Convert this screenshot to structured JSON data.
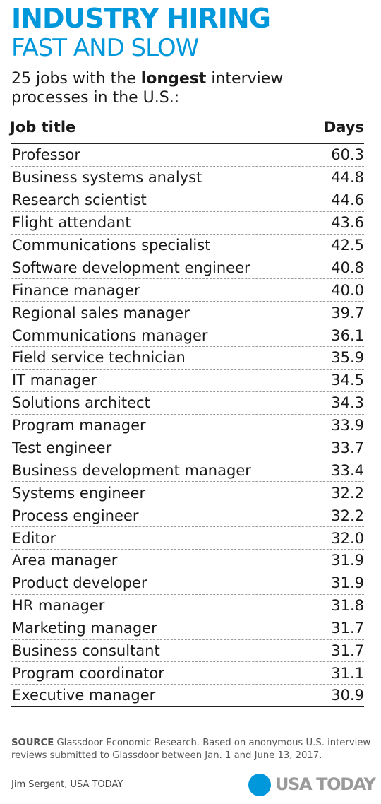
{
  "header": {
    "title_line1": "INDUSTRY HIRING",
    "title_line2": "FAST AND SLOW",
    "intro_prefix": "25 jobs with the ",
    "intro_bold": "longest",
    "intro_suffix": " interview processes in the U.S.:"
  },
  "chart_data": {
    "type": "table",
    "columns": [
      "Job title",
      "Days"
    ],
    "rows": [
      {
        "job": "Professor",
        "days": "60.3"
      },
      {
        "job": "Business systems analyst",
        "days": "44.8"
      },
      {
        "job": "Research scientist",
        "days": "44.6"
      },
      {
        "job": "Flight attendant",
        "days": "43.6"
      },
      {
        "job": "Communications specialist",
        "days": "42.5"
      },
      {
        "job": "Software development engineer",
        "days": "40.8"
      },
      {
        "job": "Finance manager",
        "days": "40.0"
      },
      {
        "job": "Regional sales manager",
        "days": "39.7"
      },
      {
        "job": "Communications manager",
        "days": "36.1"
      },
      {
        "job": "Field service technician",
        "days": "35.9"
      },
      {
        "job": "IT manager",
        "days": "34.5"
      },
      {
        "job": "Solutions architect",
        "days": "34.3"
      },
      {
        "job": "Program manager",
        "days": "33.9"
      },
      {
        "job": "Test engineer",
        "days": "33.7"
      },
      {
        "job": "Business development manager",
        "days": "33.4"
      },
      {
        "job": "Systems engineer",
        "days": "32.2"
      },
      {
        "job": "Process engineer",
        "days": "32.2"
      },
      {
        "job": "Editor",
        "days": "32.0"
      },
      {
        "job": "Area manager",
        "days": "31.9"
      },
      {
        "job": "Product developer",
        "days": "31.9"
      },
      {
        "job": "HR manager",
        "days": "31.8"
      },
      {
        "job": "Marketing manager",
        "days": "31.7"
      },
      {
        "job": "Business consultant",
        "days": "31.7"
      },
      {
        "job": "Program coordinator",
        "days": "31.1"
      },
      {
        "job": "Executive manager",
        "days": "30.9"
      }
    ]
  },
  "footer": {
    "source_label": "SOURCE",
    "source_text": " Glassdoor Economic Research. Based on anonymous U.S. interview reviews submitted to Glassdoor between Jan. 1 and June 13, 2017.",
    "credit": "Jim Sergent, USA TODAY",
    "logo_text": "USA TODAY"
  },
  "colors": {
    "accent": "#0098db",
    "text": "#1a1a1a",
    "logo_gray": "#9a9a9a"
  }
}
